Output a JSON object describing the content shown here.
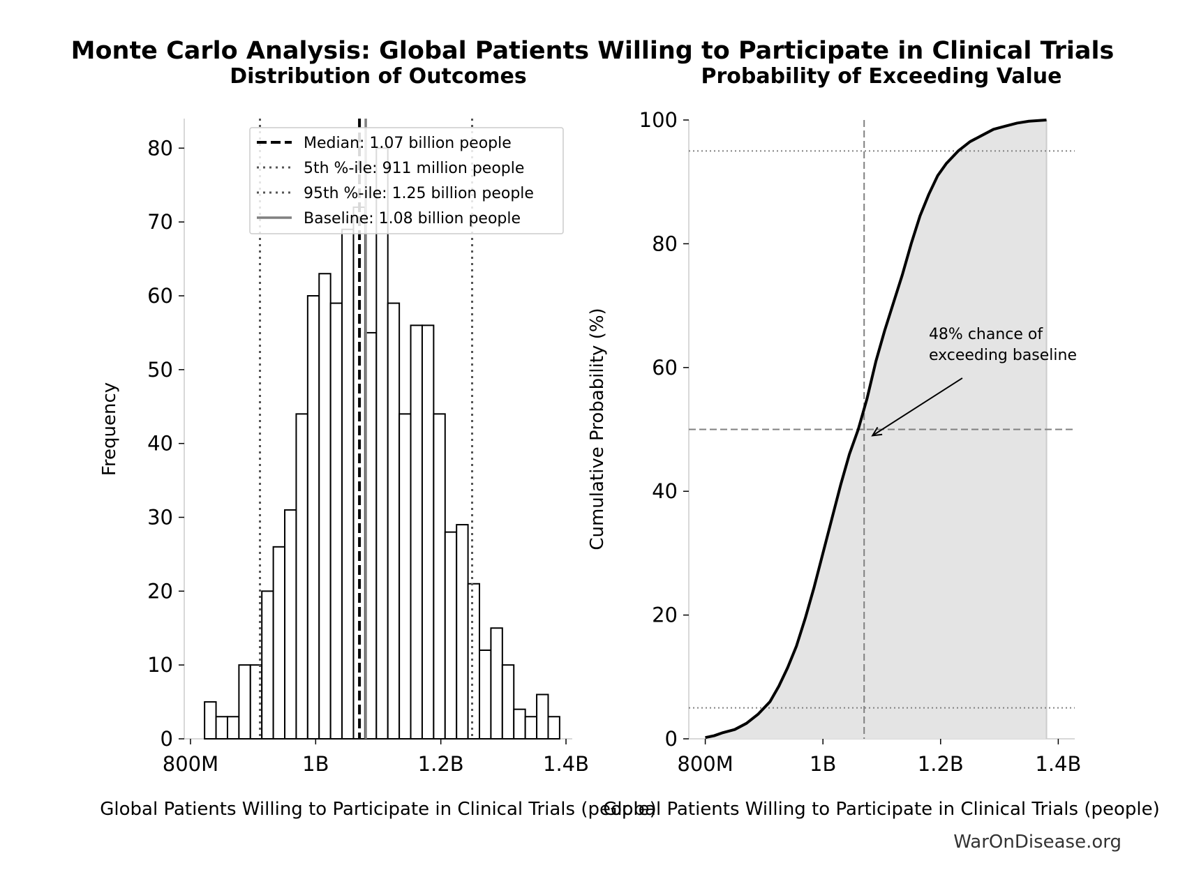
{
  "title": "Monte Carlo Analysis: Global Patients Willing to Participate in Clinical Trials",
  "watermark": "WarOnDisease.org",
  "colors": {
    "bar_edge": "#000000",
    "bar_fill": "#ffffff",
    "median": "#000000",
    "percentile": "#555555",
    "baseline": "#808080",
    "cdf_line": "#000000",
    "cdf_fill": "#e4e4e4",
    "reference": "#808080"
  },
  "chart_data": [
    {
      "type": "bar",
      "subtitle": "Distribution of Outcomes",
      "xlabel": "Global Patients Willing to Participate in Clinical Trials (people)",
      "ylabel": "Frequency",
      "xlim": [
        790000000,
        1410000000
      ],
      "ylim": [
        0,
        84
      ],
      "xticks": [
        800000000,
        1000000000,
        1200000000,
        1400000000
      ],
      "xtick_labels": [
        "800M",
        "1B",
        "1.2B",
        "1.4B"
      ],
      "yticks": [
        0,
        10,
        20,
        30,
        40,
        50,
        60,
        70,
        80
      ],
      "ytick_labels": [
        "0",
        "10",
        "20",
        "30",
        "40",
        "50",
        "60",
        "70",
        "80"
      ],
      "bin_edges": [
        822500000,
        840800000,
        859100000,
        877400000,
        895700000,
        914000000,
        932300000,
        950600000,
        968900000,
        987200000,
        1005500000,
        1023800000,
        1042100000,
        1060400000,
        1078700000,
        1097000000,
        1115300000,
        1133600000,
        1151900000,
        1170200000,
        1188500000,
        1206800000,
        1225100000,
        1243400000,
        1261700000,
        1280000000,
        1298300000,
        1316600000,
        1334900000,
        1353200000,
        1371500000,
        1389800000
      ],
      "counts": [
        5,
        3,
        3,
        10,
        10,
        20,
        26,
        31,
        44,
        60,
        63,
        59,
        69,
        72,
        55,
        80,
        59,
        44,
        56,
        56,
        44,
        28,
        29,
        21,
        12,
        15,
        10,
        4,
        3,
        6,
        3
      ],
      "median": 1070000000,
      "p5": 911000000,
      "p95": 1250000000,
      "baseline": 1080000000,
      "grid": false,
      "legend_position": "upper-right",
      "legend": [
        {
          "style": "median",
          "label": "Median: 1.07 billion people"
        },
        {
          "style": "p5",
          "label": "5th %-ile: 911 million people"
        },
        {
          "style": "p95",
          "label": "95th %-ile: 1.25 billion people"
        },
        {
          "style": "baseline",
          "label": "Baseline: 1.08 billion people"
        }
      ]
    },
    {
      "type": "area",
      "subtitle": "Probability of Exceeding Value",
      "xlabel": "Global Patients Willing to Participate in Clinical Trials (people)",
      "ylabel": "Cumulative Probability (%)",
      "xlim": [
        772000000,
        1428000000
      ],
      "ylim": [
        0,
        100
      ],
      "xticks": [
        800000000,
        1000000000,
        1200000000,
        1400000000
      ],
      "xtick_labels": [
        "800M",
        "1B",
        "1.2B",
        "1.4B"
      ],
      "yticks": [
        0,
        20,
        40,
        60,
        80,
        100
      ],
      "ytick_labels": [
        "0",
        "20",
        "40",
        "60",
        "80",
        "100"
      ],
      "x": [
        800000000,
        815000000,
        830000000,
        850000000,
        870000000,
        890000000,
        910000000,
        925000000,
        940000000,
        955000000,
        970000000,
        985000000,
        1000000000,
        1015000000,
        1030000000,
        1045000000,
        1060000000,
        1075000000,
        1090000000,
        1105000000,
        1120000000,
        1135000000,
        1150000000,
        1165000000,
        1180000000,
        1195000000,
        1210000000,
        1230000000,
        1250000000,
        1270000000,
        1290000000,
        1310000000,
        1330000000,
        1350000000,
        1380000000
      ],
      "y": [
        0.2,
        0.5,
        1,
        1.5,
        2.5,
        4,
        6,
        8.5,
        11.5,
        15,
        19.5,
        24.5,
        30,
        35.5,
        41,
        46,
        50,
        55,
        61,
        66,
        70.5,
        75,
        80,
        84.5,
        88,
        91,
        93,
        95,
        96.5,
        97.5,
        98.5,
        99,
        99.5,
        99.8,
        100
      ],
      "vline_x": 1070000000,
      "hlines": [
        50,
        95,
        5
      ],
      "annotation": {
        "text": [
          "48% chance of",
          "exceeding baseline"
        ],
        "point": [
          1070000000,
          49
        ],
        "text_at": [
          1180000000,
          61
        ]
      },
      "grid": false
    }
  ]
}
